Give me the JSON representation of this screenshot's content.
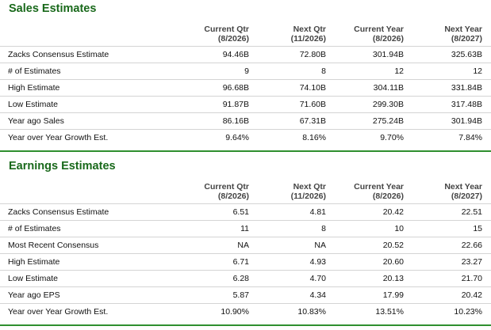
{
  "colors": {
    "title_green": "#19691b",
    "rule_green": "#2f8f2f",
    "divider": "#d4d4d4"
  },
  "sales": {
    "title": "Sales Estimates",
    "columns": [
      {
        "line1": "Current Qtr",
        "line2": "(8/2026)"
      },
      {
        "line1": "Next Qtr",
        "line2": "(11/2026)"
      },
      {
        "line1": "Current Year",
        "line2": "(8/2026)"
      },
      {
        "line1": "Next Year",
        "line2": "(8/2027)"
      }
    ],
    "rows": [
      {
        "label": "Zacks Consensus Estimate",
        "values": [
          "94.46B",
          "72.80B",
          "301.94B",
          "325.63B"
        ]
      },
      {
        "label": "# of Estimates",
        "values": [
          "9",
          "8",
          "12",
          "12"
        ]
      },
      {
        "label": "High Estimate",
        "values": [
          "96.68B",
          "74.10B",
          "304.11B",
          "331.84B"
        ]
      },
      {
        "label": "Low Estimate",
        "values": [
          "91.87B",
          "71.60B",
          "299.30B",
          "317.48B"
        ]
      },
      {
        "label": "Year ago Sales",
        "values": [
          "86.16B",
          "67.31B",
          "275.24B",
          "301.94B"
        ]
      },
      {
        "label": "Year over Year Growth Est.",
        "values": [
          "9.64%",
          "8.16%",
          "9.70%",
          "7.84%"
        ]
      }
    ]
  },
  "earnings": {
    "title": "Earnings Estimates",
    "columns": [
      {
        "line1": "Current Qtr",
        "line2": "(8/2026)"
      },
      {
        "line1": "Next Qtr",
        "line2": "(11/2026)"
      },
      {
        "line1": "Current Year",
        "line2": "(8/2026)"
      },
      {
        "line1": "Next Year",
        "line2": "(8/2027)"
      }
    ],
    "rows": [
      {
        "label": "Zacks Consensus Estimate",
        "values": [
          "6.51",
          "4.81",
          "20.42",
          "22.51"
        ]
      },
      {
        "label": "# of Estimates",
        "values": [
          "11",
          "8",
          "10",
          "15"
        ]
      },
      {
        "label": "Most Recent Consensus",
        "values": [
          "NA",
          "NA",
          "20.52",
          "22.66"
        ]
      },
      {
        "label": "High Estimate",
        "values": [
          "6.71",
          "4.93",
          "20.60",
          "23.27"
        ]
      },
      {
        "label": "Low Estimate",
        "values": [
          "6.28",
          "4.70",
          "20.13",
          "21.70"
        ]
      },
      {
        "label": "Year ago EPS",
        "values": [
          "5.87",
          "4.34",
          "17.99",
          "20.42"
        ]
      },
      {
        "label": "Year over Year Growth Est.",
        "values": [
          "10.90%",
          "10.83%",
          "13.51%",
          "10.23%"
        ]
      }
    ]
  }
}
